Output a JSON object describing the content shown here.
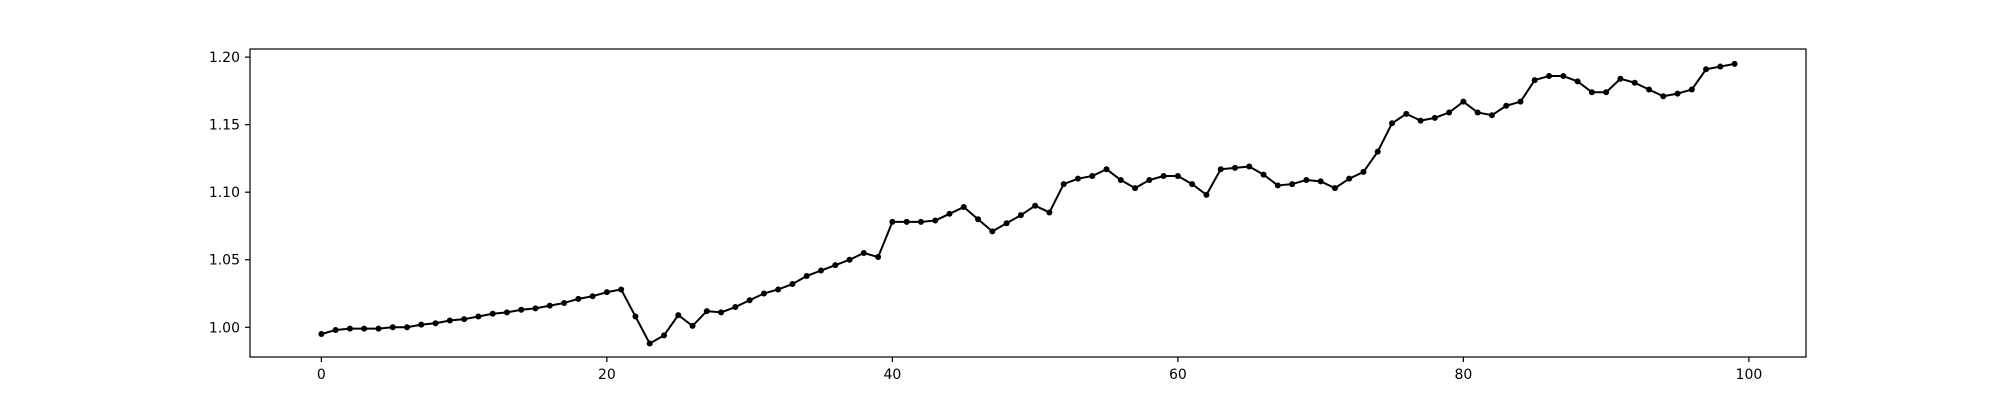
{
  "chart_data": {
    "type": "line",
    "x": [
      0,
      1,
      2,
      3,
      4,
      5,
      6,
      7,
      8,
      9,
      10,
      11,
      12,
      13,
      14,
      15,
      16,
      17,
      18,
      19,
      20,
      21,
      22,
      23,
      24,
      25,
      26,
      27,
      28,
      29,
      30,
      31,
      32,
      33,
      34,
      35,
      36,
      37,
      38,
      39,
      40,
      41,
      42,
      43,
      44,
      45,
      46,
      47,
      48,
      49,
      50,
      51,
      52,
      53,
      54,
      55,
      56,
      57,
      58,
      59,
      60,
      61,
      62,
      63,
      64,
      65,
      66,
      67,
      68,
      69,
      70,
      71,
      72,
      73,
      74,
      75,
      76,
      77,
      78,
      79,
      80,
      81,
      82,
      83,
      84,
      85,
      86,
      87,
      88,
      89,
      90,
      91,
      92,
      93,
      94,
      95,
      96,
      97,
      98,
      99
    ],
    "series": [
      {
        "values": [
          0.995,
          0.998,
          0.999,
          0.999,
          0.999,
          1.0,
          1.0,
          1.002,
          1.003,
          1.005,
          1.006,
          1.008,
          1.01,
          1.011,
          1.013,
          1.014,
          1.016,
          1.018,
          1.021,
          1.023,
          1.026,
          1.028,
          1.008,
          0.988,
          0.994,
          1.009,
          1.001,
          1.012,
          1.011,
          1.015,
          1.02,
          1.025,
          1.028,
          1.032,
          1.038,
          1.042,
          1.046,
          1.05,
          1.055,
          1.052,
          1.078,
          1.078,
          1.078,
          1.079,
          1.084,
          1.089,
          1.08,
          1.071,
          1.077,
          1.083,
          1.09,
          1.085,
          1.106,
          1.11,
          1.112,
          1.117,
          1.109,
          1.103,
          1.109,
          1.112,
          1.112,
          1.106,
          1.098,
          1.117,
          1.118,
          1.119,
          1.113,
          1.105,
          1.106,
          1.109,
          1.108,
          1.103,
          1.11,
          1.115,
          1.13,
          1.151,
          1.158,
          1.153,
          1.155,
          1.159,
          1.167,
          1.159,
          1.157,
          1.164,
          1.167,
          1.183,
          1.186,
          1.186,
          1.182,
          1.174,
          1.174,
          1.184,
          1.181,
          1.176,
          1.171,
          1.173,
          1.176,
          1.191,
          1.193,
          1.195
        ],
        "color": "#000000"
      }
    ],
    "title": "",
    "xlabel": "",
    "ylabel": "",
    "xlim": [
      -5,
      104
    ],
    "ylim": [
      0.978,
      1.206
    ],
    "xticks": [
      0,
      20,
      40,
      60,
      80,
      100
    ],
    "xtick_labels": [
      "0",
      "20",
      "40",
      "60",
      "80",
      "100"
    ],
    "yticks": [
      1.0,
      1.05,
      1.1,
      1.15,
      1.2
    ],
    "ytick_labels": [
      "1.00",
      "1.05",
      "1.10",
      "1.15",
      "1.20"
    ],
    "grid": false,
    "legend": "none",
    "marker": "circle"
  }
}
